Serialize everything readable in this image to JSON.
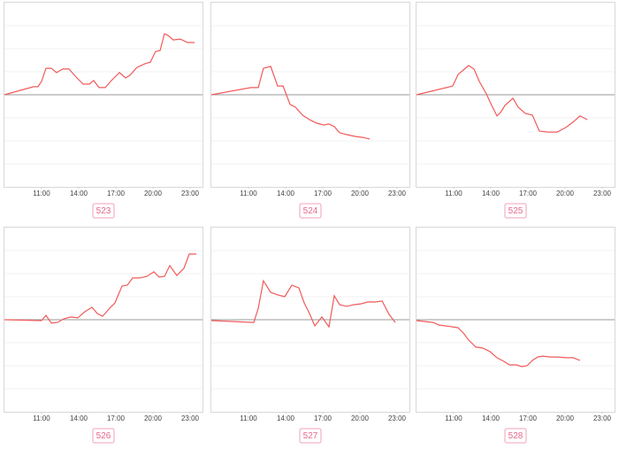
{
  "chart_data": [
    {
      "type": "line",
      "title": "523",
      "color": "#f25a5a",
      "xlim": [
        8,
        24
      ],
      "ylim": [
        -4,
        4
      ],
      "grid": true,
      "xticks": [
        {
          "value": 11,
          "label": "11:00"
        },
        {
          "value": 14,
          "label": "14:00"
        },
        {
          "value": 17,
          "label": "17:00"
        },
        {
          "value": 20,
          "label": "20:00"
        },
        {
          "value": 23,
          "label": "23:00"
        }
      ],
      "yticks": [
        -3,
        -2,
        -1,
        0,
        1,
        2,
        3
      ],
      "x": [
        8,
        10.36,
        10.71,
        11,
        11.36,
        11.79,
        12.21,
        12.71,
        13.21,
        13.79,
        14.36,
        14.86,
        15.21,
        15.64,
        16.14,
        16.64,
        17.29,
        17.79,
        18.14,
        18.71,
        19.36,
        19.79,
        20.21,
        20.57,
        20.93,
        21.21,
        21.64,
        22.21,
        22.79,
        23.36
      ],
      "values": [
        0,
        0.35,
        0.35,
        0.58,
        1.15,
        1.15,
        0.96,
        1.12,
        1.12,
        0.77,
        0.46,
        0.46,
        0.62,
        0.31,
        0.31,
        0.62,
        0.96,
        0.73,
        0.85,
        1.19,
        1.35,
        1.42,
        1.88,
        1.92,
        2.65,
        2.58,
        2.38,
        2.42,
        2.27,
        2.27
      ]
    },
    {
      "type": "line",
      "title": "524",
      "color": "#f25a5a",
      "xlim": [
        8,
        24
      ],
      "ylim": [
        -4,
        4
      ],
      "grid": true,
      "xticks": [
        {
          "value": 11,
          "label": "11:00"
        },
        {
          "value": 14,
          "label": "14:00"
        },
        {
          "value": 17,
          "label": "17:00"
        },
        {
          "value": 20,
          "label": "20:00"
        },
        {
          "value": 23,
          "label": "23:00"
        }
      ],
      "yticks": [
        -3,
        -2,
        -1,
        0,
        1,
        2,
        3
      ],
      "x": [
        8,
        11.21,
        11.79,
        12.21,
        12.79,
        13.36,
        13.79,
        14.36,
        14.79,
        15.36,
        15.93,
        16.5,
        17.07,
        17.5,
        17.93,
        18.36,
        18.93,
        19.64,
        20.21,
        20.79
      ],
      "values": [
        0,
        0.31,
        0.31,
        1.15,
        1.23,
        0.38,
        0.38,
        -0.42,
        -0.54,
        -0.88,
        -1.08,
        -1.23,
        -1.31,
        -1.27,
        -1.38,
        -1.65,
        -1.73,
        -1.81,
        -1.85,
        -1.92
      ]
    },
    {
      "type": "line",
      "title": "525",
      "color": "#f25a5a",
      "xlim": [
        8,
        24
      ],
      "ylim": [
        -4,
        4
      ],
      "grid": true,
      "xticks": [
        {
          "value": 11,
          "label": "11:00"
        },
        {
          "value": 14,
          "label": "14:00"
        },
        {
          "value": 17,
          "label": "17:00"
        },
        {
          "value": 20,
          "label": "20:00"
        },
        {
          "value": 23,
          "label": "23:00"
        }
      ],
      "yticks": [
        -3,
        -2,
        -1,
        0,
        1,
        2,
        3
      ],
      "x": [
        8,
        10.93,
        11.36,
        11.71,
        12.21,
        12.64,
        13.07,
        13.64,
        14.07,
        14.5,
        14.79,
        15.14,
        15.79,
        16.21,
        16.79,
        17.36,
        17.93,
        18.64,
        19.36,
        20.07,
        20.64,
        21.21,
        21.79
      ],
      "values": [
        0,
        0.38,
        0.88,
        1.04,
        1.27,
        1.12,
        0.58,
        0.04,
        -0.46,
        -0.92,
        -0.77,
        -0.46,
        -0.15,
        -0.54,
        -0.81,
        -0.88,
        -1.58,
        -1.62,
        -1.62,
        -1.42,
        -1.19,
        -0.92,
        -1.08
      ]
    },
    {
      "type": "line",
      "title": "526",
      "color": "#f25a5a",
      "xlim": [
        8,
        24
      ],
      "ylim": [
        -4,
        4
      ],
      "grid": true,
      "xticks": [
        {
          "value": 11,
          "label": "11:00"
        },
        {
          "value": 14,
          "label": "14:00"
        },
        {
          "value": 17,
          "label": "17:00"
        },
        {
          "value": 20,
          "label": "20:00"
        },
        {
          "value": 23,
          "label": "23:00"
        }
      ],
      "yticks": [
        -3,
        -2,
        -1,
        0,
        1,
        2,
        3
      ],
      "x": [
        8,
        11,
        11.36,
        11.79,
        12.29,
        12.79,
        13.36,
        13.93,
        14.5,
        15.07,
        15.5,
        15.93,
        16.5,
        16.93,
        17.5,
        17.93,
        18.36,
        18.93,
        19.5,
        20.07,
        20.5,
        20.93,
        21.36,
        21.93,
        22.5,
        22.93,
        23.5
      ],
      "values": [
        0,
        -0.04,
        0.19,
        -0.15,
        -0.12,
        0.04,
        0.12,
        0.08,
        0.35,
        0.54,
        0.27,
        0.15,
        0.5,
        0.73,
        1.46,
        1.5,
        1.81,
        1.81,
        1.88,
        2.08,
        1.85,
        1.88,
        2.35,
        1.92,
        2.23,
        2.85,
        2.85
      ]
    },
    {
      "type": "line",
      "title": "527",
      "color": "#f25a5a",
      "xlim": [
        8,
        24
      ],
      "ylim": [
        -4,
        4
      ],
      "grid": true,
      "xticks": [
        {
          "value": 11,
          "label": "11:00"
        },
        {
          "value": 14,
          "label": "14:00"
        },
        {
          "value": 17,
          "label": "17:00"
        },
        {
          "value": 20,
          "label": "20:00"
        },
        {
          "value": 23,
          "label": "23:00"
        }
      ],
      "yticks": [
        -3,
        -2,
        -1,
        0,
        1,
        2,
        3
      ],
      "x": [
        8,
        11.43,
        11.79,
        12.21,
        12.79,
        13.36,
        13.93,
        14.5,
        15.07,
        15.5,
        15.93,
        16.36,
        16.93,
        17.5,
        17.93,
        18.36,
        18.93,
        19.5,
        20.07,
        20.64,
        21.21,
        21.79,
        22.36,
        22.86
      ],
      "values": [
        -0.04,
        -0.12,
        0.5,
        1.69,
        1.19,
        1.08,
        1.0,
        1.5,
        1.38,
        0.73,
        0.27,
        -0.27,
        0.12,
        -0.31,
        1.04,
        0.65,
        0.58,
        0.65,
        0.69,
        0.77,
        0.77,
        0.81,
        0.23,
        -0.12
      ]
    },
    {
      "type": "line",
      "title": "528",
      "color": "#f25a5a",
      "xlim": [
        8,
        24
      ],
      "ylim": [
        -4,
        4
      ],
      "grid": true,
      "xticks": [
        {
          "value": 11,
          "label": "11:00"
        },
        {
          "value": 14,
          "label": "14:00"
        },
        {
          "value": 17,
          "label": "17:00"
        },
        {
          "value": 20,
          "label": "20:00"
        },
        {
          "value": 23,
          "label": "23:00"
        }
      ],
      "yticks": [
        -3,
        -2,
        -1,
        0,
        1,
        2,
        3
      ],
      "x": [
        8,
        9.36,
        9.79,
        10.36,
        10.93,
        11.36,
        11.79,
        12.21,
        12.79,
        13.36,
        13.93,
        14.5,
        15.07,
        15.5,
        16.07,
        16.5,
        16.93,
        17.36,
        17.79,
        18.21,
        18.79,
        19.36,
        20.07,
        20.64,
        21.21
      ],
      "values": [
        -0.04,
        -0.12,
        -0.23,
        -0.27,
        -0.31,
        -0.35,
        -0.58,
        -0.88,
        -1.19,
        -1.23,
        -1.38,
        -1.65,
        -1.81,
        -1.96,
        -1.96,
        -2.04,
        -2.0,
        -1.77,
        -1.62,
        -1.58,
        -1.62,
        -1.62,
        -1.65,
        -1.65,
        -1.77
      ]
    }
  ]
}
